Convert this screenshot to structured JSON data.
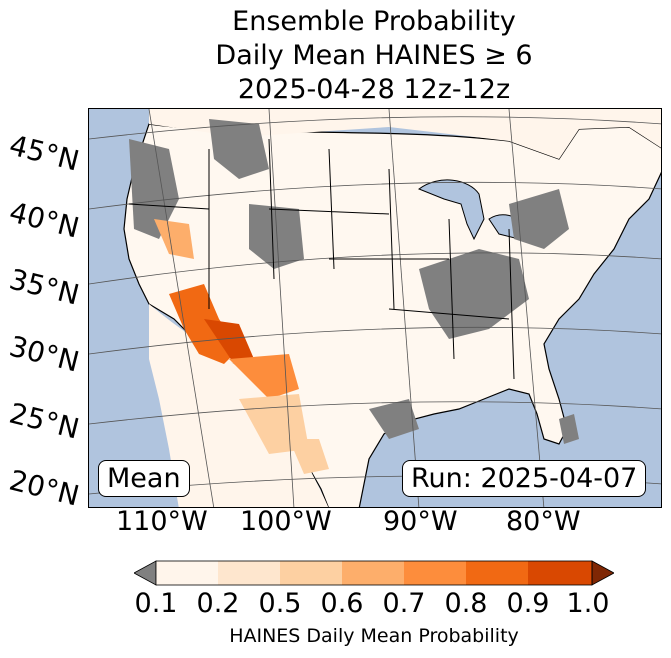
{
  "title": {
    "line1": "Ensemble Probability",
    "line2": "Daily Mean HAINES ≥ 6",
    "line3": "2025-04-28 12z-12z"
  },
  "map": {
    "latitude_labels": [
      "45°N",
      "40°N",
      "35°N",
      "30°N",
      "25°N",
      "20°N"
    ],
    "longitude_labels": [
      "110°W",
      "100°W",
      "90°W",
      "80°W"
    ],
    "left_box": "Mean",
    "right_box": "Run: 2025-04-07",
    "colors": {
      "ocean": "#b0c4de",
      "land": "#ffffff",
      "missing": "#808080"
    }
  },
  "colorbar": {
    "label": "HAINES Daily Mean Probability",
    "ticks": [
      "0.1",
      "0.2",
      "0.5",
      "0.6",
      "0.7",
      "0.8",
      "0.9",
      "1.0"
    ],
    "colors": [
      "#fff5eb",
      "#fee6ce",
      "#fdd0a2",
      "#fdae6b",
      "#fd8d3c",
      "#f16913",
      "#d94801",
      "#a63603"
    ],
    "under_color": "#808080",
    "over_color": "#7f2704"
  }
}
